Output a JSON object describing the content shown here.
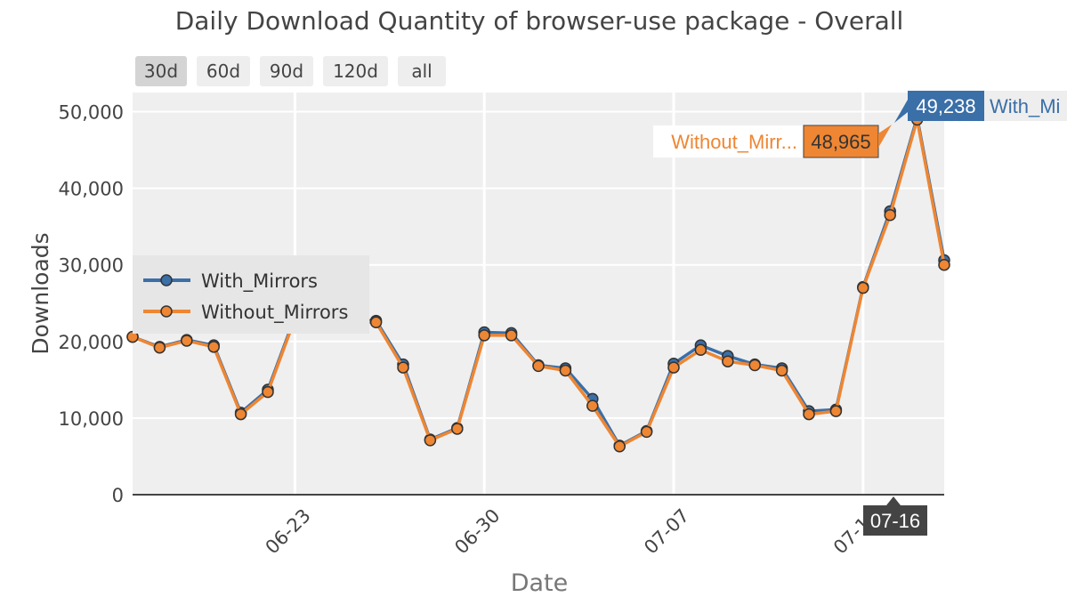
{
  "range_buttons": [
    "30d",
    "60d",
    "90d",
    "120d",
    "all"
  ],
  "active_range": "30d",
  "colors": {
    "with_mirrors": "#3a6fa8",
    "without_mirrors": "#ee8633",
    "plot_bg": "#efefef",
    "grid": "#ffffff",
    "legend_bg": "#e6e6e6",
    "hover_date_bg": "#444444"
  },
  "hover": {
    "date": "07-16",
    "with_value": "49,238",
    "with_name": "With_Mi",
    "without_value": "48,965",
    "without_name": "Without_Mirr..."
  },
  "chart_data": {
    "type": "line",
    "title": "Daily Download Quantity of browser-use package - Overall",
    "xlabel": "Date",
    "ylabel": "Downloads",
    "x": [
      "06-17",
      "06-18",
      "06-19",
      "06-20",
      "06-21",
      "06-22",
      "06-23",
      "06-24",
      "06-25",
      "06-26",
      "06-27",
      "06-28",
      "06-29",
      "06-30",
      "07-01",
      "07-02",
      "07-03",
      "07-04",
      "07-05",
      "07-06",
      "07-07",
      "07-08",
      "07-09",
      "07-10",
      "07-11",
      "07-12",
      "07-13",
      "07-14",
      "07-15",
      "07-16",
      "07-17"
    ],
    "xticks": [
      "06-23",
      "06-30",
      "07-07",
      "07-14"
    ],
    "ylim": [
      0,
      52500
    ],
    "yticks": [
      0,
      10000,
      20000,
      30000,
      40000,
      50000
    ],
    "ytick_labels": [
      "0",
      "10,000",
      "20,000",
      "30,000",
      "40,000",
      "50,000"
    ],
    "series": [
      {
        "name": "With_Mirrors",
        "values": [
          20600,
          19300,
          20200,
          19500,
          10700,
          13700,
          23200,
          23600,
          22800,
          22700,
          17000,
          7200,
          8700,
          21200,
          21100,
          16900,
          16500,
          12500,
          6400,
          8300,
          17100,
          19500,
          18100,
          17000,
          16500,
          10900,
          11100,
          27100,
          37000,
          49238,
          30600
        ]
      },
      {
        "name": "Without_Mirrors",
        "values": [
          20600,
          19200,
          20100,
          19300,
          10500,
          13400,
          23000,
          23400,
          22600,
          22500,
          16600,
          7100,
          8600,
          20800,
          20800,
          16800,
          16200,
          11600,
          6300,
          8200,
          16600,
          18900,
          17400,
          16900,
          16200,
          10500,
          10900,
          27000,
          36500,
          48965,
          30000
        ]
      }
    ],
    "legend": "left-middle"
  }
}
